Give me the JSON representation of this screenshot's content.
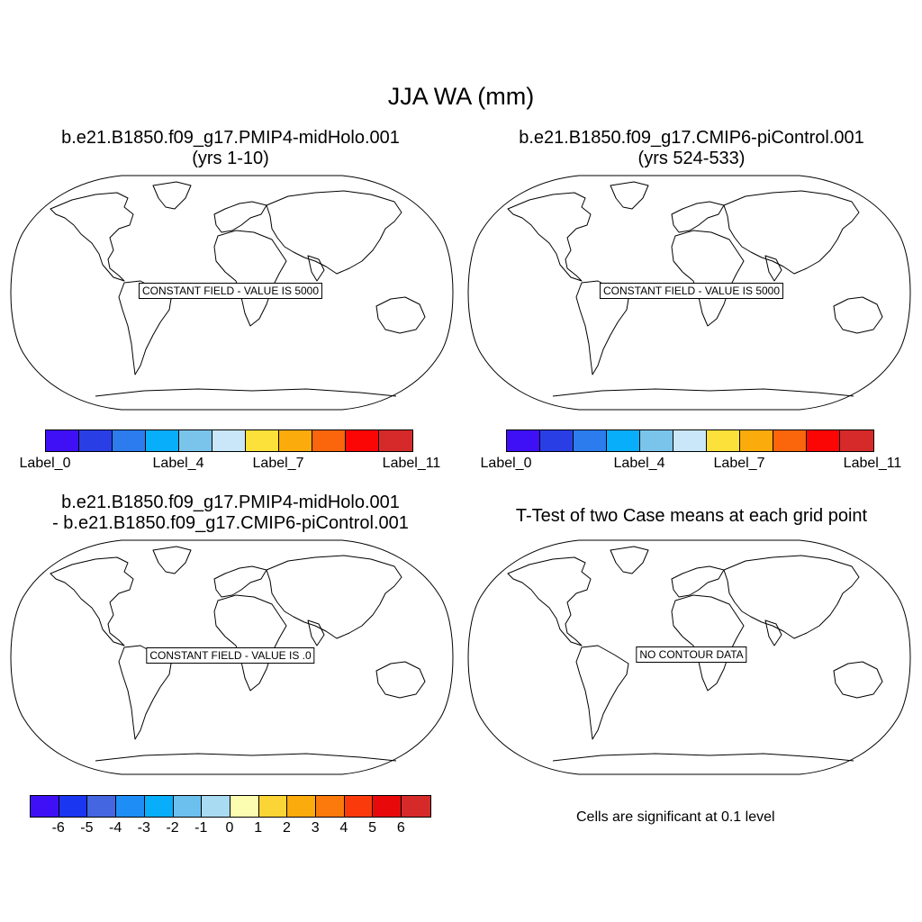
{
  "title": "JJA WA (mm)",
  "panels": [
    {
      "title_line1": "b.e21.B1850.f09_g17.PMIP4-midHolo.001",
      "title_line2": "(yrs 1-10)",
      "message": "CONSTANT FIELD - VALUE IS 5000"
    },
    {
      "title_line1": "b.e21.B1850.f09_g17.CMIP6-piControl.001",
      "title_line2": "(yrs 524-533)",
      "message": "CONSTANT FIELD - VALUE IS 5000"
    },
    {
      "title_line1": "b.e21.B1850.f09_g17.PMIP4-midHolo.001",
      "title_line2": "- b.e21.B1850.f09_g17.CMIP6-piControl.001",
      "message": "CONSTANT FIELD - VALUE IS .0"
    },
    {
      "title_line1": "T-Test of two Case means at each grid point",
      "title_line2": "",
      "message": "NO CONTOUR DATA"
    }
  ],
  "colorbar_levels": {
    "colors": [
      "#3f10f5",
      "#2a3ee6",
      "#2c7cee",
      "#08aef9",
      "#7ac4ec",
      "#c9e7f9",
      "#fbe13a",
      "#fbab0b",
      "#fb650b",
      "#fb0505",
      "#d62a2a"
    ],
    "labels": [
      "Label_0",
      "Label_4",
      "Label_7",
      "Label_11"
    ]
  },
  "colorbar_diff": {
    "colors": [
      "#3f10f5",
      "#1a36f0",
      "#4466e0",
      "#1e8ef6",
      "#08aef9",
      "#6cc0ee",
      "#a9dcf2",
      "#fdfdb2",
      "#fbd535",
      "#fbab0b",
      "#fb7a0b",
      "#fb3a0b",
      "#e80a0a",
      "#d62a2a"
    ],
    "labels": [
      "-6",
      "-5",
      "-4",
      "-3",
      "-2",
      "-1",
      "0",
      "1",
      "2",
      "3",
      "4",
      "5",
      "6"
    ]
  },
  "footnote": "Cells are significant at 0.1 level"
}
